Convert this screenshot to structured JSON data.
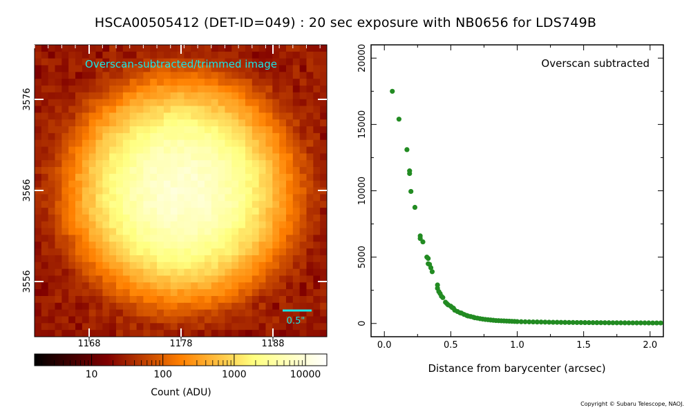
{
  "title": "HSCA00505412 (DET-ID=049) :  20 sec exposure with NB0656 for LDS749B",
  "copyright": "Copyright © Subaru Telescope, NAOJ.",
  "image_panel": {
    "label": "Overscan-subtracted/trimmed image",
    "scale_bar_label": "0.5\"",
    "x_ticks": [
      "1168",
      "1178",
      "1188"
    ],
    "y_ticks": [
      "3576",
      "3566",
      "3556"
    ],
    "label_color": "#19e6e6"
  },
  "colorbar": {
    "ticks": [
      "10",
      "100",
      "1000",
      "10000"
    ],
    "xlabel": "Count (ADU)",
    "colormap": "afmhot",
    "scale": "log"
  },
  "chart_data": {
    "type": "scatter",
    "annotation": "Overscan subtracted",
    "xlabel": "Distance from barycenter (arcsec)",
    "ylabel": "",
    "xlim": [
      -0.1,
      2.1
    ],
    "ylim": [
      -1000,
      21000
    ],
    "x_ticks": [
      "0.0",
      "0.5",
      "1.0",
      "1.5",
      "2.0"
    ],
    "y_ticks": [
      "0",
      "5000",
      "10000",
      "15000",
      "20000"
    ],
    "series": [
      {
        "color": "#228b22",
        "x": [
          0.06,
          0.11,
          0.17,
          0.19,
          0.19,
          0.2,
          0.23,
          0.27,
          0.27,
          0.29,
          0.32,
          0.33,
          0.33,
          0.34,
          0.35,
          0.36,
          0.4,
          0.4,
          0.41,
          0.42,
          0.43,
          0.44,
          0.46,
          0.47,
          0.48,
          0.5,
          0.51,
          0.52,
          0.53,
          0.55,
          0.57,
          0.58,
          0.6,
          0.62,
          0.63,
          0.65,
          0.67,
          0.68,
          0.7,
          0.72,
          0.74,
          0.76,
          0.78,
          0.8,
          0.82,
          0.84,
          0.86,
          0.88,
          0.9,
          0.92,
          0.94,
          0.96,
          0.98,
          1.0,
          1.03,
          1.06,
          1.09,
          1.12,
          1.15,
          1.18,
          1.21,
          1.24,
          1.27,
          1.3,
          1.33,
          1.36,
          1.39,
          1.42,
          1.45,
          1.48,
          1.51,
          1.54,
          1.57,
          1.6,
          1.63,
          1.66,
          1.69,
          1.72,
          1.75,
          1.78,
          1.81,
          1.84,
          1.87,
          1.9,
          1.93,
          1.96,
          1.99,
          2.02,
          2.05,
          2.08
        ],
        "y": [
          17500,
          15400,
          13100,
          11500,
          11300,
          9950,
          8750,
          6600,
          6400,
          6150,
          5000,
          4900,
          4500,
          4450,
          4200,
          3900,
          2900,
          2650,
          2400,
          2250,
          2050,
          1950,
          1600,
          1500,
          1400,
          1300,
          1200,
          1150,
          1000,
          900,
          800,
          780,
          680,
          600,
          560,
          520,
          470,
          430,
          400,
          360,
          330,
          300,
          280,
          260,
          240,
          220,
          210,
          200,
          190,
          180,
          170,
          160,
          150,
          140,
          130,
          125,
          120,
          115,
          110,
          105,
          100,
          95,
          90,
          85,
          80,
          78,
          75,
          72,
          70,
          68,
          65,
          62,
          60,
          58,
          56,
          54,
          52,
          50,
          48,
          46,
          45,
          44,
          43,
          42,
          41,
          40,
          39,
          38,
          37,
          36
        ]
      }
    ],
    "grid": false
  }
}
